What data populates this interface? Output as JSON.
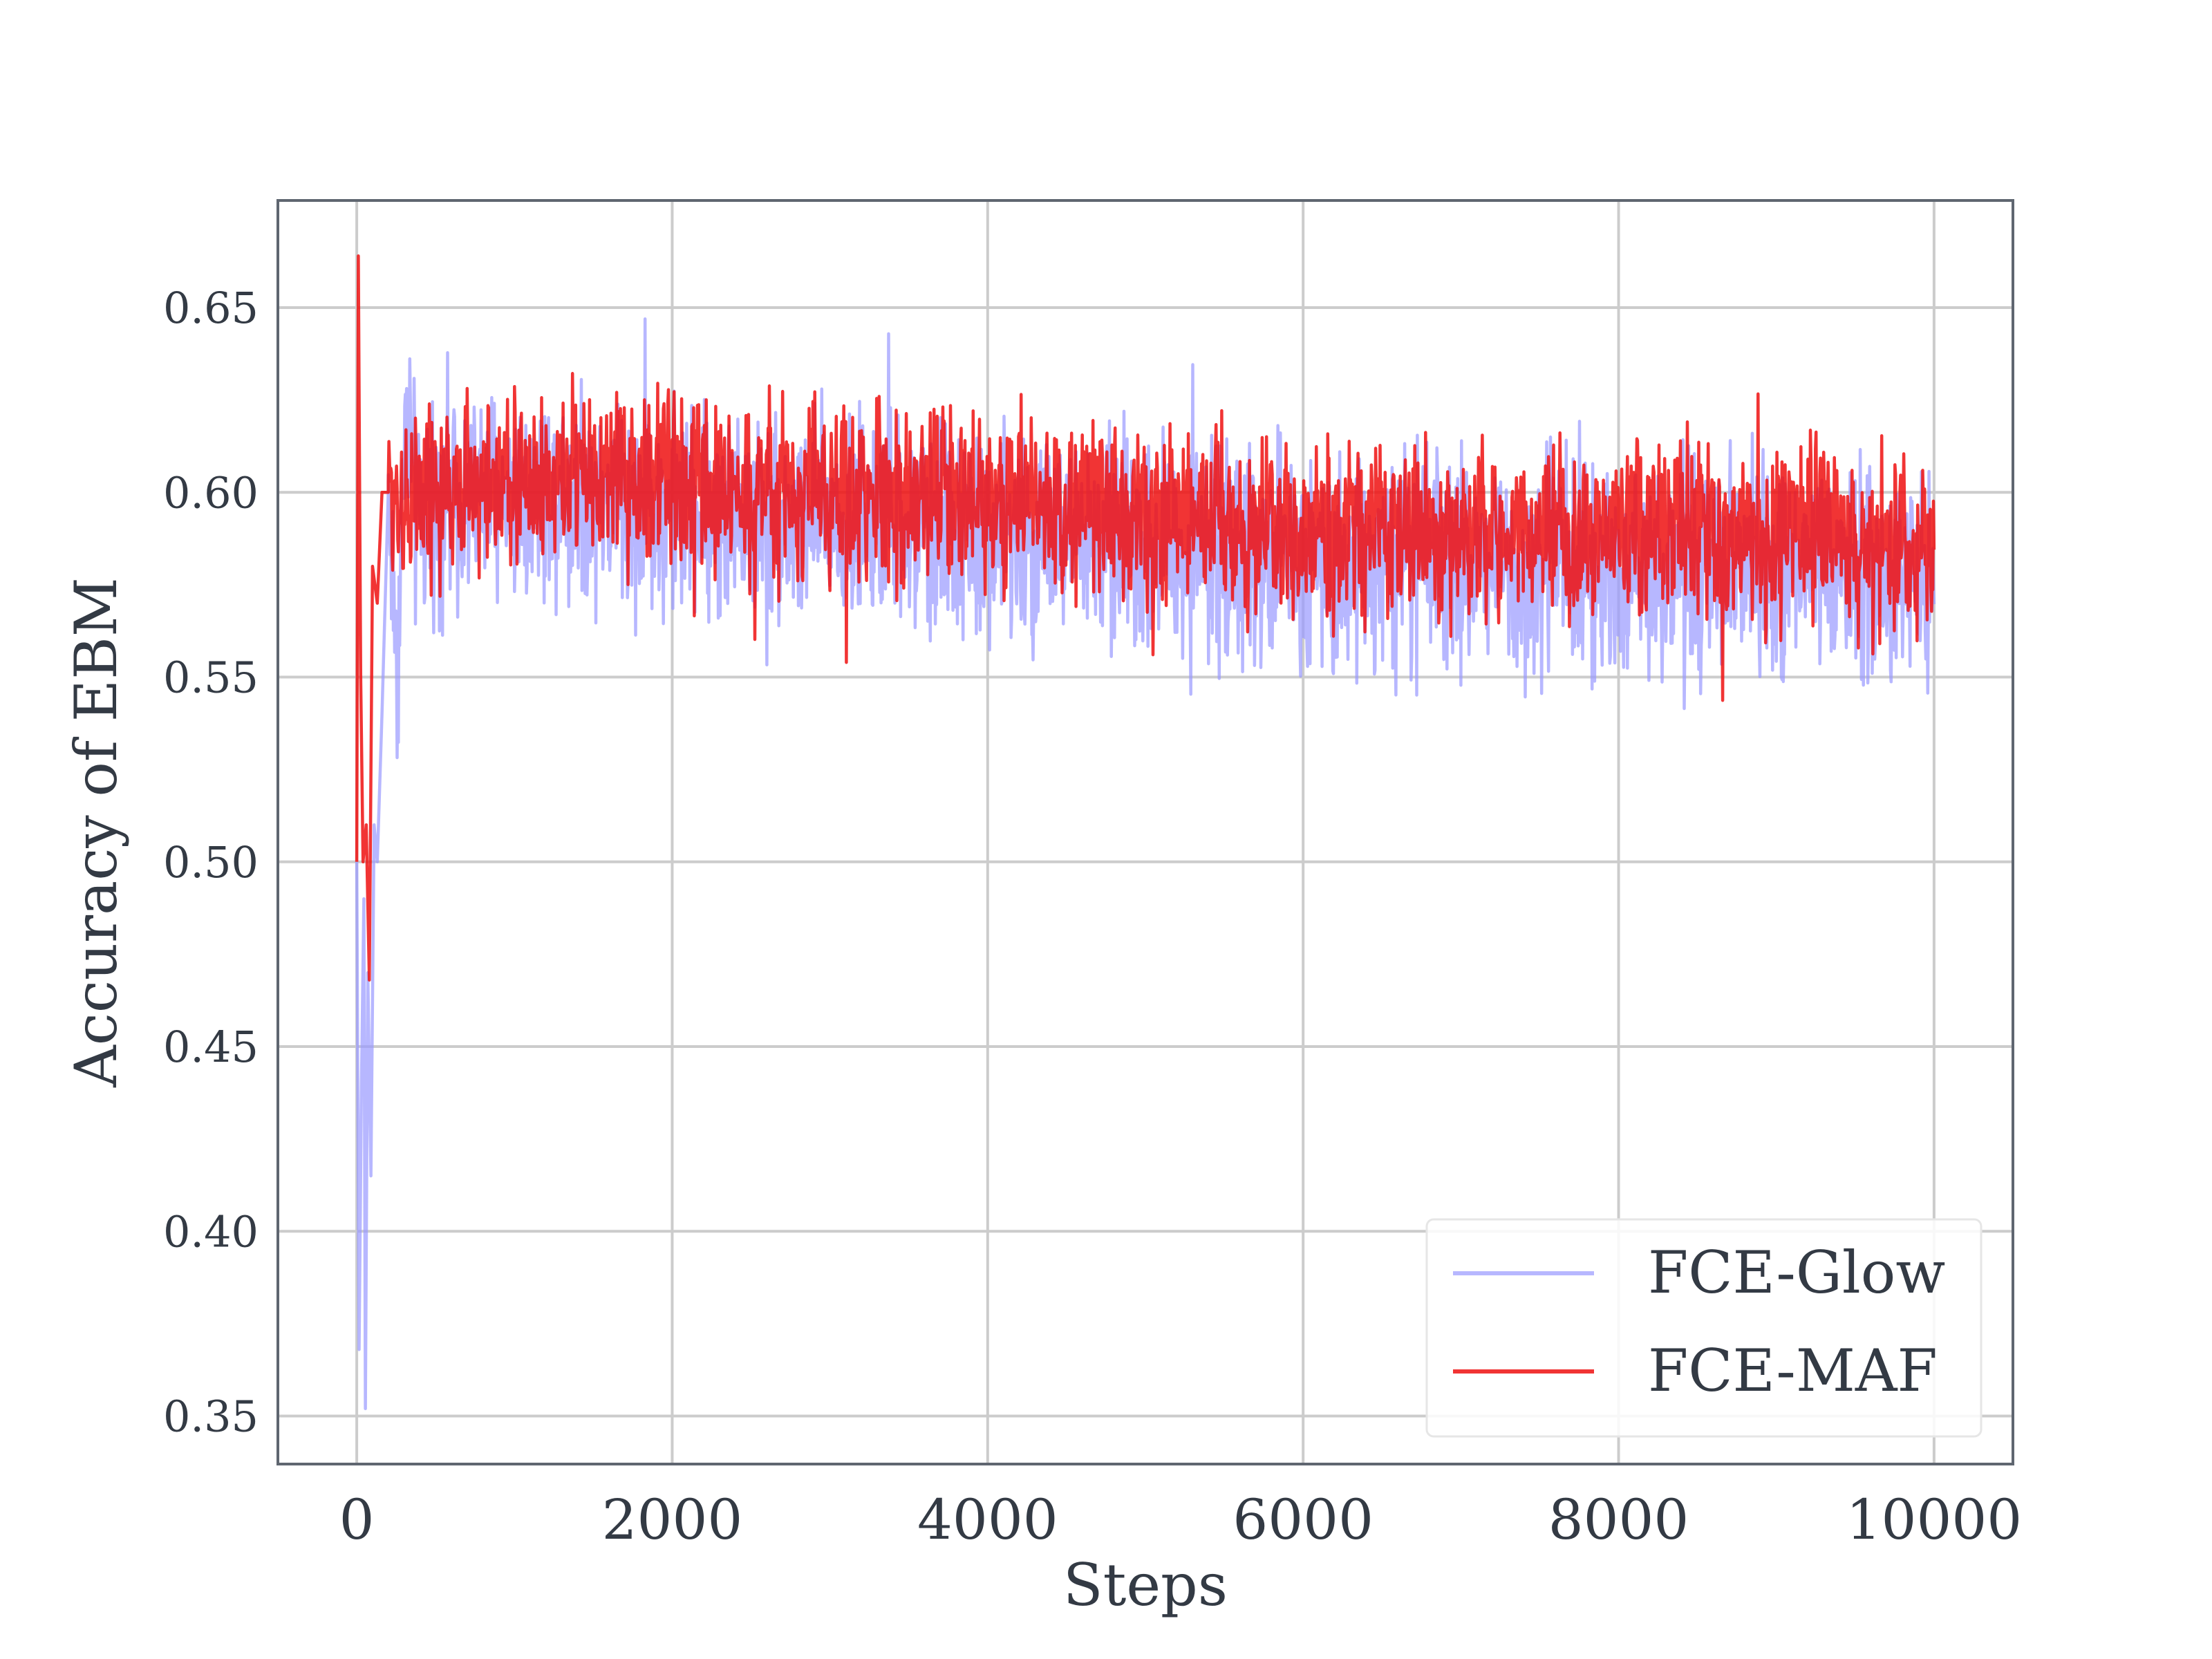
{
  "chart_data": {
    "type": "line",
    "title": "",
    "xlabel": "Steps",
    "ylabel": "Accuracy of EBM",
    "xlim": [
      -500,
      10500
    ],
    "ylim": [
      0.337,
      0.679
    ],
    "x_ticks": [
      0,
      2000,
      4000,
      6000,
      8000,
      10000
    ],
    "x_tick_labels": [
      "0",
      "2000",
      "4000",
      "6000",
      "8000",
      "10000"
    ],
    "y_ticks": [
      0.35,
      0.4,
      0.45,
      0.5,
      0.55,
      0.6,
      0.65
    ],
    "y_tick_labels": [
      "0.35",
      "0.40",
      "0.45",
      "0.50",
      "0.55",
      "0.60",
      "0.65"
    ],
    "grid": true,
    "legend_position": "bottom-right",
    "series": [
      {
        "name": "FCE-Glow",
        "color": "#9999ff",
        "opacity": 0.7,
        "points": [
          [
            0,
            0.5
          ],
          [
            15,
            0.368
          ],
          [
            30,
            0.44
          ],
          [
            45,
            0.49
          ],
          [
            55,
            0.352
          ],
          [
            70,
            0.47
          ],
          [
            90,
            0.415
          ],
          [
            110,
            0.51
          ],
          [
            130,
            0.5
          ],
          [
            160,
            0.54
          ],
          [
            200,
            0.6
          ],
          [
            260,
            0.55
          ],
          [
            300,
            0.62
          ],
          [
            400,
            0.59
          ],
          [
            500,
            0.6
          ],
          [
            700,
            0.6
          ],
          [
            1000,
            0.6
          ],
          [
            1500,
            0.6
          ],
          [
            2000,
            0.595
          ],
          [
            2500,
            0.593
          ],
          [
            3000,
            0.592
          ],
          [
            3500,
            0.59
          ],
          [
            4000,
            0.588
          ],
          [
            4500,
            0.587
          ],
          [
            5000,
            0.586
          ],
          [
            5500,
            0.584
          ],
          [
            6000,
            0.582
          ],
          [
            6500,
            0.582
          ],
          [
            7000,
            0.58
          ],
          [
            7500,
            0.58
          ],
          [
            8000,
            0.579
          ],
          [
            8500,
            0.578
          ],
          [
            9000,
            0.578
          ],
          [
            9500,
            0.576
          ],
          [
            10000,
            0.575
          ]
        ],
        "noise_band": 0.026
      },
      {
        "name": "FCE-MAF",
        "color": "#ee1111",
        "opacity": 0.85,
        "points": [
          [
            0,
            0.5
          ],
          [
            10,
            0.664
          ],
          [
            25,
            0.55
          ],
          [
            40,
            0.5
          ],
          [
            60,
            0.51
          ],
          [
            80,
            0.468
          ],
          [
            100,
            0.58
          ],
          [
            130,
            0.57
          ],
          [
            160,
            0.6
          ],
          [
            200,
            0.6
          ],
          [
            300,
            0.598
          ],
          [
            500,
            0.6
          ],
          [
            1000,
            0.603
          ],
          [
            1500,
            0.604
          ],
          [
            2000,
            0.603
          ],
          [
            2500,
            0.6
          ],
          [
            3000,
            0.6
          ],
          [
            3500,
            0.6
          ],
          [
            4000,
            0.598
          ],
          [
            4500,
            0.596
          ],
          [
            5000,
            0.595
          ],
          [
            5500,
            0.592
          ],
          [
            6000,
            0.59
          ],
          [
            6500,
            0.59
          ],
          [
            7000,
            0.59
          ],
          [
            7500,
            0.589
          ],
          [
            8000,
            0.589
          ],
          [
            8500,
            0.589
          ],
          [
            9000,
            0.588
          ],
          [
            9500,
            0.587
          ],
          [
            10000,
            0.585
          ]
        ],
        "noise_band": 0.021
      }
    ]
  }
}
